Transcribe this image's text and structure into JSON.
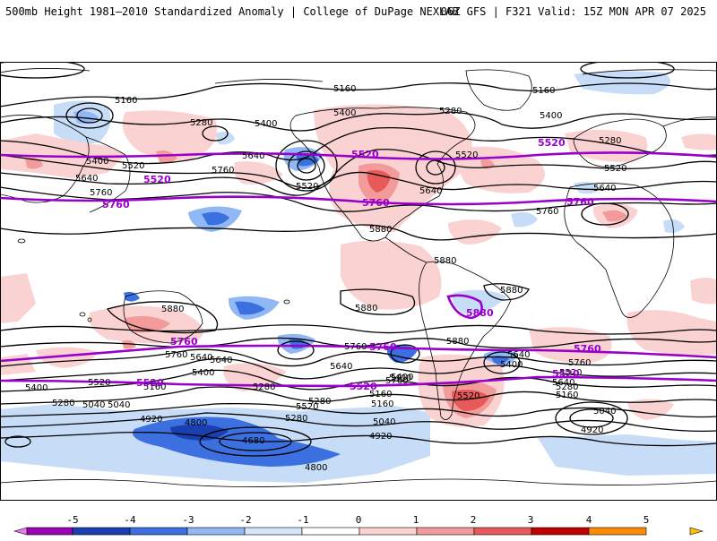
{
  "header": {
    "title": "500mb Height 1981–2010 Standardized Anomaly | College of DuPage NEXLAB",
    "run_info": "06Z GFS | F321 Valid: 15Z MON APR 07 2025"
  },
  "colorbar": {
    "ticks": [
      "-5",
      "-4",
      "-3",
      "-2",
      "-1",
      "0",
      "1",
      "2",
      "3",
      "4",
      "5"
    ],
    "colors": [
      "#e879e8",
      "#9a00b8",
      "#1a3fb0",
      "#3c6fe0",
      "#8fb8f5",
      "#d4e6fb",
      "#ffffff",
      "#fbd2d2",
      "#f39a9a",
      "#e85a5a",
      "#c00000",
      "#ff8c00",
      "#ffc000"
    ]
  },
  "contours": {
    "labels": [
      "5160",
      "5160",
      "5160",
      "5280",
      "5400",
      "5280",
      "5400",
      "5520",
      "5400",
      "5640",
      "5760",
      "5520",
      "5640",
      "5760",
      "5400",
      "5520",
      "5640",
      "5880",
      "5280",
      "5520",
      "5640",
      "5760",
      "5880",
      "5880",
      "5880",
      "5880",
      "5880",
      "5760",
      "5640",
      "5400",
      "5160",
      "5280",
      "5040",
      "4920",
      "4800",
      "4680",
      "4800",
      "5400",
      "5520",
      "5520",
      "5640",
      "5760",
      "5160",
      "5040",
      "4920",
      "5040",
      "5280",
      "5520",
      "5640",
      "5760",
      "5400",
      "5520",
      "5760",
      "5640",
      "5400",
      "5280",
      "5160",
      "5040",
      "4920",
      "5280",
      "5640",
      "5160",
      "5280",
      "5400"
    ],
    "reference_labels": [
      "5520",
      "5760",
      "5520",
      "5760",
      "5520",
      "5760",
      "5760",
      "5760",
      "5520",
      "5520",
      "5760",
      "5520",
      "5880"
    ]
  }
}
